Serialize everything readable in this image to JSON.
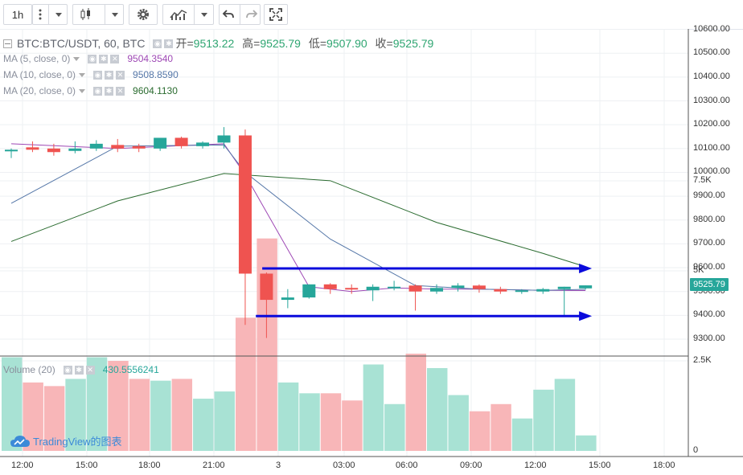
{
  "toolbar": {
    "interval": "1h",
    "icons": [
      "more-vert-icon",
      "candles-icon",
      "chevron-down-icon",
      "gear-icon",
      "indicators-icon",
      "chevron-down-icon",
      "undo-icon",
      "redo-icon",
      "fullscreen-icon"
    ]
  },
  "symbol": {
    "title": "BTC:BTC/USDT, 60, BTC",
    "open_label": "开=",
    "open": "9513.22",
    "high_label": "高=",
    "high": "9525.79",
    "low_label": "低=",
    "low": "9507.90",
    "close_label": "收=",
    "close": "9525.79"
  },
  "indicators": [
    {
      "label": "MA (5, close, 0)",
      "value": "9504.3540",
      "color": "#9e48b5"
    },
    {
      "label": "MA (10, close, 0)",
      "value": "9508.8590",
      "color": "#5577a8"
    },
    {
      "label": "MA (20, close, 0)",
      "value": "9604.1130",
      "color": "#2a6b2f"
    }
  ],
  "volume_indicator": {
    "label": "Volume (20)",
    "value": "430.5556241",
    "color": "#26a69a"
  },
  "price_axis": [
    "10600.00",
    "10500.00",
    "10400.00",
    "10300.00",
    "10200.00",
    "10100.00",
    "10000.00",
    "9900.00",
    "9800.00",
    "9700.00",
    "9600.00",
    "9500.00",
    "9400.00",
    "9300.00"
  ],
  "last_price": "9525.79",
  "volume_axis": [
    "7.5K",
    "5K",
    "2.5K",
    "0"
  ],
  "time_axis": [
    "12:00",
    "15:00",
    "18:00",
    "21:00",
    "3",
    "03:00",
    "06:00",
    "09:00",
    "12:00",
    "15:00",
    "18:00"
  ],
  "watermark": "TradingView的图表",
  "colors": {
    "up": "#26a69a",
    "down": "#ef5350",
    "vol_up": "#a8e2d4",
    "vol_down": "#f8b6b8",
    "arrow": "#0a0adc",
    "grid": "#eef0f3"
  },
  "chart_data": {
    "type": "candlestick",
    "interval": "60",
    "symbol": "BTC:BTC/USDT",
    "candles": [
      {
        "o": 10090,
        "h": 10100,
        "l": 10060,
        "c": 10095
      },
      {
        "o": 10105,
        "h": 10130,
        "l": 10085,
        "c": 10095
      },
      {
        "o": 10100,
        "h": 10120,
        "l": 10070,
        "c": 10085
      },
      {
        "o": 10090,
        "h": 10130,
        "l": 10080,
        "c": 10100
      },
      {
        "o": 10100,
        "h": 10135,
        "l": 10090,
        "c": 10120
      },
      {
        "o": 10115,
        "h": 10140,
        "l": 10085,
        "c": 10100
      },
      {
        "o": 10110,
        "h": 10120,
        "l": 10085,
        "c": 10100
      },
      {
        "o": 10100,
        "h": 10140,
        "l": 10090,
        "c": 10145
      },
      {
        "o": 10145,
        "h": 10150,
        "l": 10100,
        "c": 10110
      },
      {
        "o": 10110,
        "h": 10130,
        "l": 10100,
        "c": 10125
      },
      {
        "o": 10125,
        "h": 10190,
        "l": 10100,
        "c": 10155
      },
      {
        "o": 10155,
        "h": 10180,
        "l": 9360,
        "c": 9575
      },
      {
        "o": 9575,
        "h": 9580,
        "l": 9305,
        "c": 9465
      },
      {
        "o": 9465,
        "h": 9510,
        "l": 9430,
        "c": 9475
      },
      {
        "o": 9475,
        "h": 9530,
        "l": 9470,
        "c": 9530
      },
      {
        "o": 9530,
        "h": 9535,
        "l": 9490,
        "c": 9510
      },
      {
        "o": 9515,
        "h": 9530,
        "l": 9490,
        "c": 9510
      },
      {
        "o": 9505,
        "h": 9530,
        "l": 9460,
        "c": 9520
      },
      {
        "o": 9520,
        "h": 9545,
        "l": 9505,
        "c": 9520
      },
      {
        "o": 9525,
        "h": 9530,
        "l": 9420,
        "c": 9500
      },
      {
        "o": 9500,
        "h": 9530,
        "l": 9490,
        "c": 9515
      },
      {
        "o": 9515,
        "h": 9535,
        "l": 9500,
        "c": 9525
      },
      {
        "o": 9525,
        "h": 9530,
        "l": 9495,
        "c": 9510
      },
      {
        "o": 9510,
        "h": 9520,
        "l": 9490,
        "c": 9500
      },
      {
        "o": 9500,
        "h": 9510,
        "l": 9490,
        "c": 9505
      },
      {
        "o": 9500,
        "h": 9515,
        "l": 9490,
        "c": 9510
      },
      {
        "o": 9510,
        "h": 9520,
        "l": 9400,
        "c": 9520
      },
      {
        "o": 9513.22,
        "h": 9525.79,
        "l": 9507.9,
        "c": 9525.79
      }
    ],
    "volume": [
      2600,
      1900,
      1800,
      2000,
      2600,
      2500,
      2000,
      1950,
      2000,
      1450,
      1650,
      3700,
      5900,
      1900,
      1600,
      1600,
      1400,
      2400,
      1300,
      2700,
      2300,
      1550,
      1100,
      1300,
      900,
      1700,
      2000,
      430
    ],
    "ma": [
      {
        "period": 5,
        "points": [
          [
            0,
            10120
          ],
          [
            5,
            10100
          ],
          [
            10,
            10120
          ],
          [
            11,
            9990
          ],
          [
            14,
            9520
          ],
          [
            16,
            9500
          ],
          [
            18,
            9515
          ],
          [
            20,
            9510
          ],
          [
            22,
            9510
          ],
          [
            25,
            9505
          ],
          [
            27,
            9504
          ]
        ]
      },
      {
        "period": 10,
        "points": [
          [
            0,
            9870
          ],
          [
            5,
            10110
          ],
          [
            10,
            10115
          ],
          [
            11,
            10000
          ],
          [
            15,
            9720
          ],
          [
            19,
            9525
          ],
          [
            22,
            9510
          ],
          [
            25,
            9505
          ],
          [
            27,
            9509
          ]
        ]
      },
      {
        "period": 20,
        "points": [
          [
            0,
            9710
          ],
          [
            5,
            9880
          ],
          [
            10,
            9995
          ],
          [
            15,
            9965
          ],
          [
            20,
            9790
          ],
          [
            25,
            9660
          ],
          [
            27,
            9604
          ]
        ]
      }
    ],
    "drawings": [
      {
        "type": "arrow",
        "from": [
          11.8,
          9597
        ],
        "to": [
          27.3,
          9597
        ]
      },
      {
        "type": "arrow",
        "from": [
          11.5,
          9397
        ],
        "to": [
          27.3,
          9397
        ]
      }
    ],
    "ylim": [
      9250,
      10650
    ],
    "volume_ylim": [
      0,
      8800
    ]
  }
}
